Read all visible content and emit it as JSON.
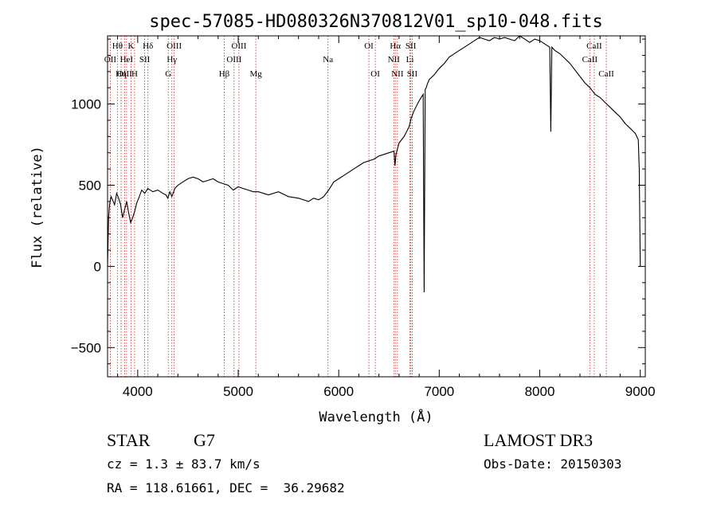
{
  "chart_data": {
    "type": "line",
    "title": "spec-57085-HD080326N370812V01_sp10-048.fits",
    "xlabel": "Wavelength (Å)",
    "ylabel": "Flux (relative)",
    "xlim": [
      3700,
      9050
    ],
    "ylim": [
      -680,
      1420
    ],
    "xticks": [
      4000,
      5000,
      6000,
      7000,
      8000,
      9000
    ],
    "yticks": [
      -500,
      0,
      500,
      1000
    ],
    "xtick_labels": [
      "4000",
      "5000",
      "6000",
      "7000",
      "8000",
      "9000"
    ],
    "ytick_labels": [
      "−500",
      "0",
      "500",
      "1000"
    ],
    "grid": false,
    "legend": "none",
    "colors": {
      "spectrum": "#000000",
      "lines": "#cc2222"
    },
    "series": [
      {
        "x": [
          3700,
          3710,
          3720,
          3735,
          3750,
          3770,
          3790,
          3810,
          3830,
          3850,
          3870,
          3890,
          3910,
          3930,
          3950,
          3970,
          3990,
          4010,
          4040,
          4070,
          4100,
          4150,
          4200,
          4250,
          4280,
          4300,
          4320,
          4340,
          4370,
          4400,
          4450,
          4500,
          4550,
          4600,
          4650,
          4700,
          4750,
          4800,
          4850,
          4900,
          4950,
          5000,
          5050,
          5100,
          5150,
          5200,
          5250,
          5300,
          5400,
          5500,
          5600,
          5700,
          5750,
          5800,
          5850,
          5900,
          5950,
          6000,
          6050,
          6100,
          6150,
          6200,
          6250,
          6300,
          6350,
          6400,
          6450,
          6500,
          6550,
          6560,
          6570,
          6600,
          6650,
          6700,
          6720,
          6750,
          6800,
          6840,
          6850,
          6860,
          6870,
          6880,
          6900,
          6950,
          7000,
          7050,
          7100,
          7150,
          7200,
          7250,
          7300,
          7350,
          7400,
          7450,
          7500,
          7550,
          7600,
          7650,
          7700,
          7750,
          7800,
          7850,
          7900,
          7950,
          8000,
          8050,
          8100,
          8110,
          8120,
          8150,
          8200,
          8250,
          8300,
          8350,
          8400,
          8450,
          8500,
          8550,
          8600,
          8650,
          8700,
          8750,
          8800,
          8850,
          8900,
          8950,
          8980,
          8990,
          9000
        ],
        "y": [
          0,
          300,
          380,
          430,
          410,
          380,
          450,
          420,
          380,
          300,
          350,
          400,
          330,
          270,
          300,
          340,
          390,
          420,
          470,
          450,
          480,
          460,
          470,
          450,
          440,
          420,
          460,
          430,
          480,
          500,
          520,
          540,
          550,
          540,
          520,
          530,
          540,
          520,
          510,
          500,
          470,
          490,
          480,
          470,
          460,
          460,
          450,
          440,
          460,
          430,
          420,
          400,
          420,
          410,
          430,
          470,
          520,
          540,
          560,
          580,
          600,
          620,
          640,
          650,
          660,
          680,
          690,
          700,
          710,
          620,
          690,
          760,
          800,
          860,
          910,
          960,
          1020,
          1060,
          -160,
          1090,
          1100,
          1120,
          1150,
          1180,
          1220,
          1250,
          1290,
          1310,
          1330,
          1350,
          1370,
          1390,
          1410,
          1400,
          1390,
          1410,
          1400,
          1410,
          1400,
          1390,
          1420,
          1400,
          1380,
          1400,
          1390,
          1370,
          1350,
          830,
          1350,
          1330,
          1310,
          1280,
          1250,
          1210,
          1170,
          1130,
          1100,
          1060,
          1040,
          1010,
          980,
          950,
          920,
          880,
          850,
          820,
          780,
          600,
          0
        ]
      }
    ],
    "spectral_lines": [
      {
        "label": "Hθ",
        "x": 3798
      },
      {
        "label": "Hη",
        "x": 3835
      },
      {
        "label": "OII",
        "x": 3727
      },
      {
        "label": "OIII",
        "x": 3869
      },
      {
        "label": "HeI",
        "x": 3889
      },
      {
        "label": "K",
        "x": 3934
      },
      {
        "label": "H",
        "x": 3969
      },
      {
        "label": "SII",
        "x": 4069
      },
      {
        "label": "Hδ",
        "x": 4102
      },
      {
        "label": "G",
        "x": 4304
      },
      {
        "label": "Hγ",
        "x": 4340
      },
      {
        "label": "OIII",
        "x": 4363
      },
      {
        "label": "Hβ",
        "x": 4861
      },
      {
        "label": "OIII",
        "x": 4959
      },
      {
        "label": "OIII",
        "x": 5007
      },
      {
        "label": "Mg",
        "x": 5175
      },
      {
        "label": "Na",
        "x": 5893
      },
      {
        "label": "OI",
        "x": 6300
      },
      {
        "label": "OI",
        "x": 6364
      },
      {
        "label": "NII",
        "x": 6548
      },
      {
        "label": "Hα",
        "x": 6563
      },
      {
        "label": "NII",
        "x": 6584
      },
      {
        "label": "Li",
        "x": 6708
      },
      {
        "label": "SII",
        "x": 6717
      },
      {
        "label": "SII",
        "x": 6731
      },
      {
        "label": "CaII",
        "x": 8498
      },
      {
        "label": "CaII",
        "x": 8542
      },
      {
        "label": "CaII",
        "x": 8662
      }
    ],
    "line_label_rows": [
      [
        {
          "label": "Hθ",
          "x": 3798
        },
        {
          "label": "K",
          "x": 3934
        },
        {
          "label": "Hδ",
          "x": 4102
        },
        {
          "label": "OIII",
          "x": 4363
        },
        {
          "label": "OIII",
          "x": 5007
        },
        {
          "label": "OI",
          "x": 6300
        },
        {
          "label": "Hα",
          "x": 6563
        },
        {
          "label": "SII",
          "x": 6717
        },
        {
          "label": "CaII",
          "x": 8542
        }
      ],
      [
        {
          "label": "OII",
          "x": 3727
        },
        {
          "label": "HeI",
          "x": 3889
        },
        {
          "label": "SII",
          "x": 4069
        },
        {
          "label": "Hγ",
          "x": 4340
        },
        {
          "label": "OIII",
          "x": 4959
        },
        {
          "label": "Na",
          "x": 5893
        },
        {
          "label": "NII",
          "x": 6548
        },
        {
          "label": "Li",
          "x": 6708
        },
        {
          "label": "CaII",
          "x": 8498
        }
      ],
      [
        {
          "label": "OIII",
          "x": 3869
        },
        {
          "label": "Hη",
          "x": 3835
        },
        {
          "label": "H",
          "x": 3969
        },
        {
          "label": "G",
          "x": 4304
        },
        {
          "label": "Hβ",
          "x": 4861
        },
        {
          "label": "Mg",
          "x": 5175
        },
        {
          "label": "OI",
          "x": 6364
        },
        {
          "label": "NII",
          "x": 6584
        },
        {
          "label": "SII",
          "x": 6731
        },
        {
          "label": "CaII",
          "x": 8662
        }
      ]
    ]
  },
  "info": {
    "object_class": "STAR",
    "subclass": "G7",
    "survey": "LAMOST DR3",
    "velocity": "cz = 1.3 ± 83.7 km/s",
    "obs_date": "Obs-Date: 20150303",
    "coords": "RA = 118.61661, DEC =  36.29682"
  }
}
